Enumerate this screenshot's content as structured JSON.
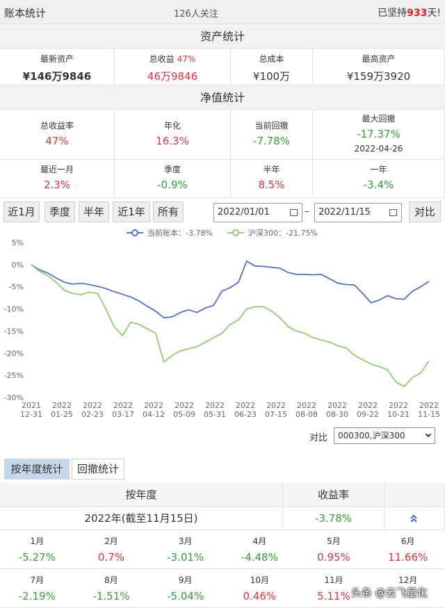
{
  "header": {
    "title": "账本统计",
    "followers": "126人关注",
    "streak_prefix": "已坚持",
    "streak_days": "933",
    "streak_suffix": "天!"
  },
  "asset_stats": {
    "title": "资产统计",
    "items": [
      {
        "label": "最新资产",
        "value": "¥146万9846"
      },
      {
        "label": "总收益",
        "badge": "47%",
        "value": "46万9846"
      },
      {
        "label": "总成本",
        "value": "¥100万"
      },
      {
        "label": "最高资产",
        "value": "¥159万3920"
      }
    ]
  },
  "nav_stats": {
    "title": "净值统计",
    "rows": [
      [
        {
          "label": "总收益率",
          "value": "47%"
        },
        {
          "label": "年化",
          "value": "16.3%"
        },
        {
          "label": "当前回撤",
          "value": "-7.78%"
        },
        {
          "label": "最大回撤",
          "value": "-17.37%",
          "date": "2022-04-26"
        }
      ],
      [
        {
          "label": "最近一月",
          "value": "2.3%"
        },
        {
          "label": "季度",
          "value": "-0.9%"
        },
        {
          "label": "半年",
          "value": "8.5%"
        },
        {
          "label": "一年",
          "value": "-3.4%"
        }
      ]
    ]
  },
  "range_buttons": [
    "近1月",
    "季度",
    "半年",
    "近1年",
    "所有"
  ],
  "date_from": "2022/01/01",
  "date_separator": "–",
  "date_to": "2022/11/15",
  "compare_button": "对比",
  "chart_data": {
    "type": "line",
    "ylim": [
      -30,
      5
    ],
    "yticks": [
      {
        "value": 5,
        "label": "5%"
      },
      {
        "value": 0,
        "label": "0%"
      },
      {
        "value": -5,
        "label": "-5%"
      },
      {
        "value": -10,
        "label": "-10%"
      },
      {
        "value": -15,
        "label": "-15%"
      },
      {
        "value": -20,
        "label": "-20%"
      },
      {
        "value": -25,
        "label": "-25%"
      },
      {
        "value": -30,
        "label": "-30%"
      }
    ],
    "xticks": [
      {
        "year": "2021",
        "date": "12-31"
      },
      {
        "year": "2022",
        "date": "01-25"
      },
      {
        "year": "2022",
        "date": "02-23"
      },
      {
        "year": "2022",
        "date": "03-17"
      },
      {
        "year": "2022",
        "date": "04-12"
      },
      {
        "year": "2022",
        "date": "05-09"
      },
      {
        "year": "2022",
        "date": "05-31"
      },
      {
        "year": "2022",
        "date": "06-23"
      },
      {
        "year": "2022",
        "date": "07-15"
      },
      {
        "year": "2022",
        "date": "08-08"
      },
      {
        "year": "2022",
        "date": "08-30"
      },
      {
        "year": "2022",
        "date": "09-22"
      },
      {
        "year": "2022",
        "date": "10-21"
      },
      {
        "year": "2022",
        "date": "11-15"
      }
    ],
    "grid": false,
    "series": [
      {
        "name": "当前账本：-3.78%",
        "color": "#5470c6",
        "values": [
          0,
          -1.2,
          -1.9,
          -3,
          -4,
          -4.4,
          -4.2,
          -4.5,
          -4.9,
          -5.4,
          -6.1,
          -6.7,
          -7.3,
          -8.2,
          -9.4,
          -10.5,
          -12,
          -11.8,
          -10.8,
          -10.2,
          -10.8,
          -9.8,
          -9.2,
          -6,
          -5.2,
          -4,
          0.8,
          -0.3,
          -0.4,
          -0.6,
          -0.8,
          -1.8,
          -2.2,
          -2.2,
          -2.3,
          -2.2,
          -3.2,
          -4.2,
          -4.5,
          -4.6,
          -6.5,
          -8.6,
          -8,
          -7,
          -7.7,
          -7.8,
          -6,
          -5,
          -3.78
        ]
      },
      {
        "name": "沪深300：-21.75%",
        "color": "#91cc75",
        "values": [
          0,
          -1.5,
          -2.5,
          -4,
          -5.8,
          -6.5,
          -6.8,
          -6.2,
          -6.5,
          -10,
          -14,
          -16,
          -13,
          -13.5,
          -14.5,
          -15.5,
          -22,
          -20.5,
          -19.5,
          -19,
          -18.5,
          -17.5,
          -16.5,
          -15.5,
          -13.5,
          -12.5,
          -10,
          -9.5,
          -9.5,
          -10.5,
          -12,
          -14,
          -15,
          -15.5,
          -16.5,
          -17,
          -17.5,
          -18.3,
          -18.8,
          -20.5,
          -21.5,
          -22.5,
          -23,
          -23.8,
          -26.5,
          -27.5,
          -25.5,
          -24.5,
          -21.75
        ]
      }
    ]
  },
  "compare": {
    "label": "对比",
    "selected": "000300,沪深300"
  },
  "tabs": [
    "按年度统计",
    "回撤统计"
  ],
  "annual_table": {
    "headers": [
      "按年度",
      "收益率"
    ],
    "rows": [
      {
        "period": "2022年(截至11月15日)",
        "return": "-3.78%"
      }
    ],
    "months": [
      {
        "month": "1月",
        "return": "-5.27%"
      },
      {
        "month": "2月",
        "return": "0.7%"
      },
      {
        "month": "3月",
        "return": "-3.01%"
      },
      {
        "month": "4月",
        "return": "-4.48%"
      },
      {
        "month": "5月",
        "return": "0.95%"
      },
      {
        "month": "6月",
        "return": "11.66%"
      },
      {
        "month": "7月",
        "return": "-2.19%"
      },
      {
        "month": "8月",
        "return": "-1.51%"
      },
      {
        "month": "9月",
        "return": "-5.04%"
      },
      {
        "month": "10月",
        "return": "0.46%"
      },
      {
        "month": "11月",
        "return": "5.11%"
      },
      {
        "month": "12月"
      }
    ]
  },
  "watermark": "头条 @云飞量化"
}
